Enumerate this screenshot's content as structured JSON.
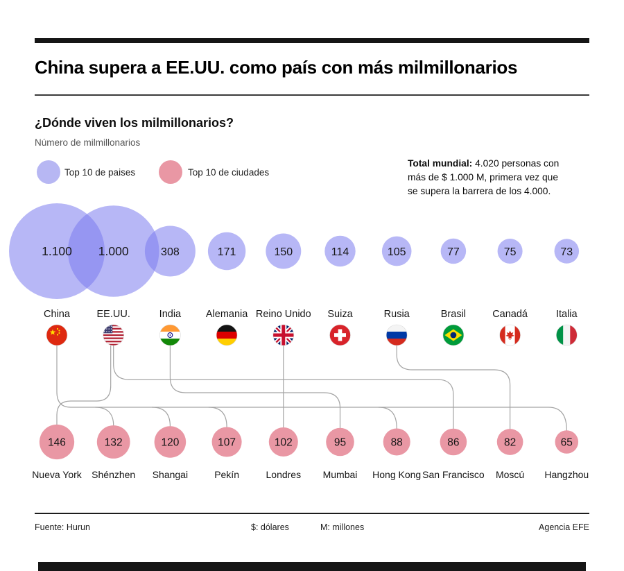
{
  "header": {
    "title": "China supera a EE.UU. como país con más milmillonarios"
  },
  "chart": {
    "subtitle": "¿Dónde viven los milmillonarios?",
    "unit_label": "Número de milmillonarios",
    "legend": [
      {
        "label": "Top 10 de paises",
        "color": "#b7b7f3"
      },
      {
        "label": "Top 10 de ciudades",
        "color": "#e997a4"
      }
    ],
    "note": {
      "bold": "Total mundial:",
      "line1": " 4.020 personas con",
      "line2": "más de $ 1.000 M, primera vez que",
      "line3": "se supera la barrera de los 4.000."
    }
  },
  "chart_data": {
    "type": "bubble",
    "title": "¿Dónde viven los milmillonarios?",
    "unit": "Número de milmillonarios",
    "series": [
      {
        "name": "Top 10 de paises",
        "color": "#7c7cee",
        "points": [
          {
            "label": "China",
            "value": 1100,
            "value_text": "1.100",
            "flag": "china"
          },
          {
            "label": "EE.UU.",
            "value": 1000,
            "value_text": "1.000",
            "flag": "eeuu"
          },
          {
            "label": "India",
            "value": 308,
            "value_text": "308",
            "flag": "india"
          },
          {
            "label": "Alemania",
            "value": 171,
            "value_text": "171",
            "flag": "alemania"
          },
          {
            "label": "Reino Unido",
            "value": 150,
            "value_text": "150",
            "flag": "reino-unido"
          },
          {
            "label": "Suiza",
            "value": 114,
            "value_text": "114",
            "flag": "suiza"
          },
          {
            "label": "Rusia",
            "value": 105,
            "value_text": "105",
            "flag": "rusia"
          },
          {
            "label": "Brasil",
            "value": 77,
            "value_text": "77",
            "flag": "brasil"
          },
          {
            "label": "Canadá",
            "value": 75,
            "value_text": "75",
            "flag": "canada"
          },
          {
            "label": "Italia",
            "value": 73,
            "value_text": "73",
            "flag": "italia"
          }
        ]
      },
      {
        "name": "Top 10 de ciudades",
        "color": "#e997a4",
        "points": [
          {
            "label": "Nueva York",
            "value": 146,
            "value_text": "146"
          },
          {
            "label": "Shénzhen",
            "value": 132,
            "value_text": "132"
          },
          {
            "label": "Shangai",
            "value": 120,
            "value_text": "120"
          },
          {
            "label": "Pekín",
            "value": 107,
            "value_text": "107"
          },
          {
            "label": "Londres",
            "value": 102,
            "value_text": "102"
          },
          {
            "label": "Mumbai",
            "value": 95,
            "value_text": "95"
          },
          {
            "label": "Hong Kong",
            "value": 88,
            "value_text": "88"
          },
          {
            "label": "San Francisco",
            "value": 86,
            "value_text": "86"
          },
          {
            "label": "Moscú",
            "value": 82,
            "value_text": "82"
          },
          {
            "label": "Hangzhou",
            "value": 65,
            "value_text": "65"
          }
        ]
      }
    ],
    "links": [
      {
        "from": "China",
        "to": [
          "Shénzhen",
          "Shangai",
          "Pekín",
          "Hong Kong",
          "Hangzhou"
        ]
      },
      {
        "from": "EE.UU.",
        "to": [
          "Nueva York",
          "San Francisco"
        ]
      },
      {
        "from": "India",
        "to": [
          "Mumbai"
        ]
      },
      {
        "from": "Reino Unido",
        "to": [
          "Londres"
        ]
      },
      {
        "from": "Rusia",
        "to": [
          "Moscú"
        ]
      }
    ]
  },
  "footer": {
    "source": "Fuente: Hurun",
    "dollar": "$: dólares",
    "millions": "M: millones",
    "credit": "Agencia EFE"
  }
}
